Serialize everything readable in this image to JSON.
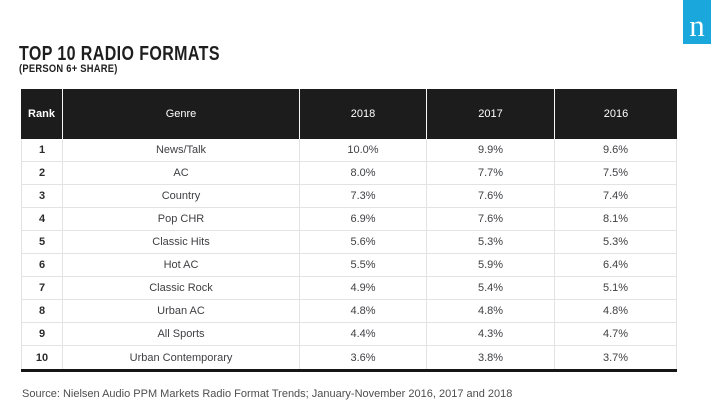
{
  "logo": {
    "letter": "n",
    "bg_color": "#1aa7dc"
  },
  "chart_data": {
    "type": "table",
    "title": "TOP 10 RADIO FORMATS",
    "subtitle": "(PERSON 6+ SHARE)",
    "columns": [
      "Rank",
      "Genre",
      "2018",
      "2017",
      "2016"
    ],
    "rows": [
      [
        "1",
        "News/Talk",
        "10.0%",
        "9.9%",
        "9.6%"
      ],
      [
        "2",
        "AC",
        "8.0%",
        "7.7%",
        "7.5%"
      ],
      [
        "3",
        "Country",
        "7.3%",
        "7.6%",
        "7.4%"
      ],
      [
        "4",
        "Pop CHR",
        "6.9%",
        "7.6%",
        "8.1%"
      ],
      [
        "5",
        "Classic Hits",
        "5.6%",
        "5.3%",
        "5.3%"
      ],
      [
        "6",
        "Hot AC",
        "5.5%",
        "5.9%",
        "6.4%"
      ],
      [
        "7",
        "Classic Rock",
        "4.9%",
        "5.4%",
        "5.1%"
      ],
      [
        "8",
        "Urban AC",
        "4.8%",
        "4.8%",
        "4.8%"
      ],
      [
        "9",
        "All Sports",
        "4.4%",
        "4.3%",
        "4.7%"
      ],
      [
        "10",
        "Urban Contemporary",
        "3.6%",
        "3.8%",
        "3.7%"
      ]
    ],
    "source": "Source: Nielsen Audio PPM Markets Radio Format Trends; January-November 2016, 2017 and 2018",
    "header_bg": "#1c1c1c",
    "layout": {
      "grid": "on",
      "header_text_color": "#ffffff"
    }
  }
}
